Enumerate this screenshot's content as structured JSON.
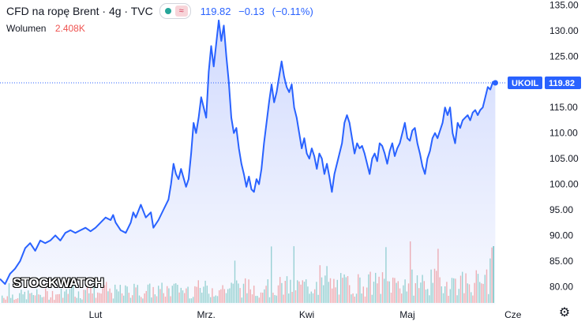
{
  "header": {
    "symbol_title": "CFD na ropę Brent · 4g · TVC",
    "price": "119.82",
    "change": "−0.13",
    "change_pct": "(−0.11%)",
    "volume_label": "Wolumen",
    "volume_value": "2.408K"
  },
  "price_tag": {
    "ticker": "UKOIL",
    "value": "119.82"
  },
  "watermark": "STOCKWATCH",
  "colors": {
    "line": "#2962ff",
    "fill": "#c7d2fe",
    "up": "#26a69a",
    "down": "#ef5350",
    "tag": "#2962ff"
  },
  "icons": {
    "settings": "gear-icon",
    "eye": "eye-icon",
    "wave": "wave-icon"
  },
  "chart_data": {
    "type": "area",
    "ylim": [
      76.5,
      136
    ],
    "y_ticks": [
      80,
      85,
      90,
      95,
      100,
      105,
      110,
      115,
      120,
      125,
      130,
      135
    ],
    "y_tick_labels": [
      "80.00",
      "85.00",
      "90.00",
      "95.00",
      "100.00",
      "105.00",
      "110.00",
      "115.00",
      "120.00",
      "125.00",
      "130.00",
      "135.00"
    ],
    "x_ticks": [
      0.19,
      0.41,
      0.61,
      0.81,
      1.02
    ],
    "x_tick_labels": [
      "Lut",
      "Mrz.",
      "Kwi",
      "Maj",
      "Cze"
    ],
    "last_value": 119.82,
    "series": [
      {
        "points": [
          [
            0.0,
            81.5
          ],
          [
            0.01,
            80.5
          ],
          [
            0.02,
            82.5
          ],
          [
            0.03,
            83.5
          ],
          [
            0.04,
            85.0
          ],
          [
            0.05,
            87.5
          ],
          [
            0.06,
            88.5
          ],
          [
            0.07,
            87.0
          ],
          [
            0.08,
            89.0
          ],
          [
            0.09,
            88.5
          ],
          [
            0.1,
            89.0
          ],
          [
            0.11,
            90.0
          ],
          [
            0.12,
            89.0
          ],
          [
            0.13,
            90.5
          ],
          [
            0.14,
            91.0
          ],
          [
            0.15,
            90.5
          ],
          [
            0.16,
            91.0
          ],
          [
            0.17,
            91.5
          ],
          [
            0.18,
            90.8
          ],
          [
            0.19,
            91.5
          ],
          [
            0.2,
            92.5
          ],
          [
            0.21,
            93.5
          ],
          [
            0.22,
            93.0
          ],
          [
            0.225,
            94.0
          ],
          [
            0.23,
            92.5
          ],
          [
            0.24,
            91.0
          ],
          [
            0.25,
            90.5
          ],
          [
            0.26,
            92.5
          ],
          [
            0.265,
            94.5
          ],
          [
            0.27,
            93.5
          ],
          [
            0.28,
            96.0
          ],
          [
            0.29,
            93.5
          ],
          [
            0.3,
            94.5
          ],
          [
            0.305,
            91.5
          ],
          [
            0.315,
            93.0
          ],
          [
            0.325,
            95.0
          ],
          [
            0.335,
            97.0
          ],
          [
            0.34,
            100.0
          ],
          [
            0.345,
            104.0
          ],
          [
            0.35,
            102.0
          ],
          [
            0.355,
            101.0
          ],
          [
            0.36,
            103.0
          ],
          [
            0.37,
            99.5
          ],
          [
            0.375,
            101.0
          ],
          [
            0.38,
            106.0
          ],
          [
            0.385,
            112.0
          ],
          [
            0.39,
            110.0
          ],
          [
            0.395,
            113.0
          ],
          [
            0.4,
            117.0
          ],
          [
            0.405,
            115.0
          ],
          [
            0.41,
            113.0
          ],
          [
            0.415,
            122.0
          ],
          [
            0.42,
            127.0
          ],
          [
            0.425,
            123.0
          ],
          [
            0.43,
            127.5
          ],
          [
            0.435,
            132.0
          ],
          [
            0.44,
            128.0
          ],
          [
            0.445,
            131.0
          ],
          [
            0.45,
            125.0
          ],
          [
            0.455,
            120.0
          ],
          [
            0.46,
            113.0
          ],
          [
            0.465,
            110.0
          ],
          [
            0.47,
            111.0
          ],
          [
            0.475,
            107.0
          ],
          [
            0.48,
            104.0
          ],
          [
            0.485,
            102.0
          ],
          [
            0.49,
            99.5
          ],
          [
            0.495,
            101.5
          ],
          [
            0.5,
            99.0
          ],
          [
            0.505,
            98.5
          ],
          [
            0.51,
            101.0
          ],
          [
            0.515,
            100.0
          ],
          [
            0.52,
            103.0
          ],
          [
            0.525,
            108.0
          ],
          [
            0.53,
            112.0
          ],
          [
            0.535,
            116.0
          ],
          [
            0.54,
            119.5
          ],
          [
            0.545,
            116.0
          ],
          [
            0.55,
            118.0
          ],
          [
            0.555,
            121.0
          ],
          [
            0.56,
            124.0
          ],
          [
            0.565,
            121.0
          ],
          [
            0.57,
            119.0
          ],
          [
            0.575,
            118.0
          ],
          [
            0.58,
            119.5
          ],
          [
            0.585,
            115.0
          ],
          [
            0.59,
            113.0
          ],
          [
            0.595,
            110.0
          ],
          [
            0.6,
            107.0
          ],
          [
            0.605,
            109.0
          ],
          [
            0.61,
            106.0
          ],
          [
            0.615,
            105.0
          ],
          [
            0.62,
            107.0
          ],
          [
            0.625,
            105.5
          ],
          [
            0.63,
            103.0
          ],
          [
            0.635,
            106.0
          ],
          [
            0.64,
            105.0
          ],
          [
            0.645,
            102.0
          ],
          [
            0.65,
            104.0
          ],
          [
            0.655,
            101.5
          ],
          [
            0.66,
            98.5
          ],
          [
            0.665,
            102.0
          ],
          [
            0.67,
            104.0
          ],
          [
            0.675,
            106.0
          ],
          [
            0.68,
            108.0
          ],
          [
            0.685,
            112.0
          ],
          [
            0.69,
            113.5
          ],
          [
            0.695,
            112.0
          ],
          [
            0.7,
            109.0
          ],
          [
            0.705,
            106.0
          ],
          [
            0.71,
            108.0
          ],
          [
            0.715,
            107.0
          ],
          [
            0.72,
            107.5
          ],
          [
            0.725,
            106.0
          ],
          [
            0.73,
            104.0
          ],
          [
            0.735,
            102.0
          ],
          [
            0.74,
            105.0
          ],
          [
            0.745,
            106.0
          ],
          [
            0.75,
            104.5
          ],
          [
            0.755,
            108.0
          ],
          [
            0.76,
            107.5
          ],
          [
            0.765,
            106.0
          ],
          [
            0.77,
            104.0
          ],
          [
            0.775,
            106.5
          ],
          [
            0.78,
            108.0
          ],
          [
            0.785,
            105.5
          ],
          [
            0.79,
            107.0
          ],
          [
            0.795,
            108.0
          ],
          [
            0.8,
            110.0
          ],
          [
            0.805,
            112.0
          ],
          [
            0.81,
            109.0
          ],
          [
            0.815,
            108.5
          ],
          [
            0.82,
            110.5
          ],
          [
            0.825,
            111.0
          ],
          [
            0.83,
            108.0
          ],
          [
            0.835,
            106.0
          ],
          [
            0.84,
            103.5
          ],
          [
            0.845,
            102.0
          ],
          [
            0.85,
            105.0
          ],
          [
            0.855,
            106.5
          ],
          [
            0.86,
            109.0
          ],
          [
            0.865,
            110.0
          ],
          [
            0.87,
            109.0
          ],
          [
            0.875,
            110.5
          ],
          [
            0.88,
            112.0
          ],
          [
            0.885,
            115.0
          ],
          [
            0.89,
            113.5
          ],
          [
            0.895,
            115.0
          ],
          [
            0.9,
            110.0
          ],
          [
            0.905,
            108.0
          ],
          [
            0.91,
            112.0
          ],
          [
            0.915,
            111.0
          ],
          [
            0.92,
            112.5
          ],
          [
            0.925,
            113.0
          ],
          [
            0.93,
            113.5
          ],
          [
            0.935,
            112.5
          ],
          [
            0.94,
            114.0
          ],
          [
            0.945,
            114.5
          ],
          [
            0.95,
            113.5
          ],
          [
            0.955,
            114.5
          ],
          [
            0.96,
            115.0
          ],
          [
            0.965,
            117.0
          ],
          [
            0.97,
            119.0
          ],
          [
            0.975,
            118.5
          ],
          [
            0.98,
            120.0
          ],
          [
            0.985,
            119.82
          ]
        ]
      }
    ],
    "volume_max_k": 5.2
  }
}
